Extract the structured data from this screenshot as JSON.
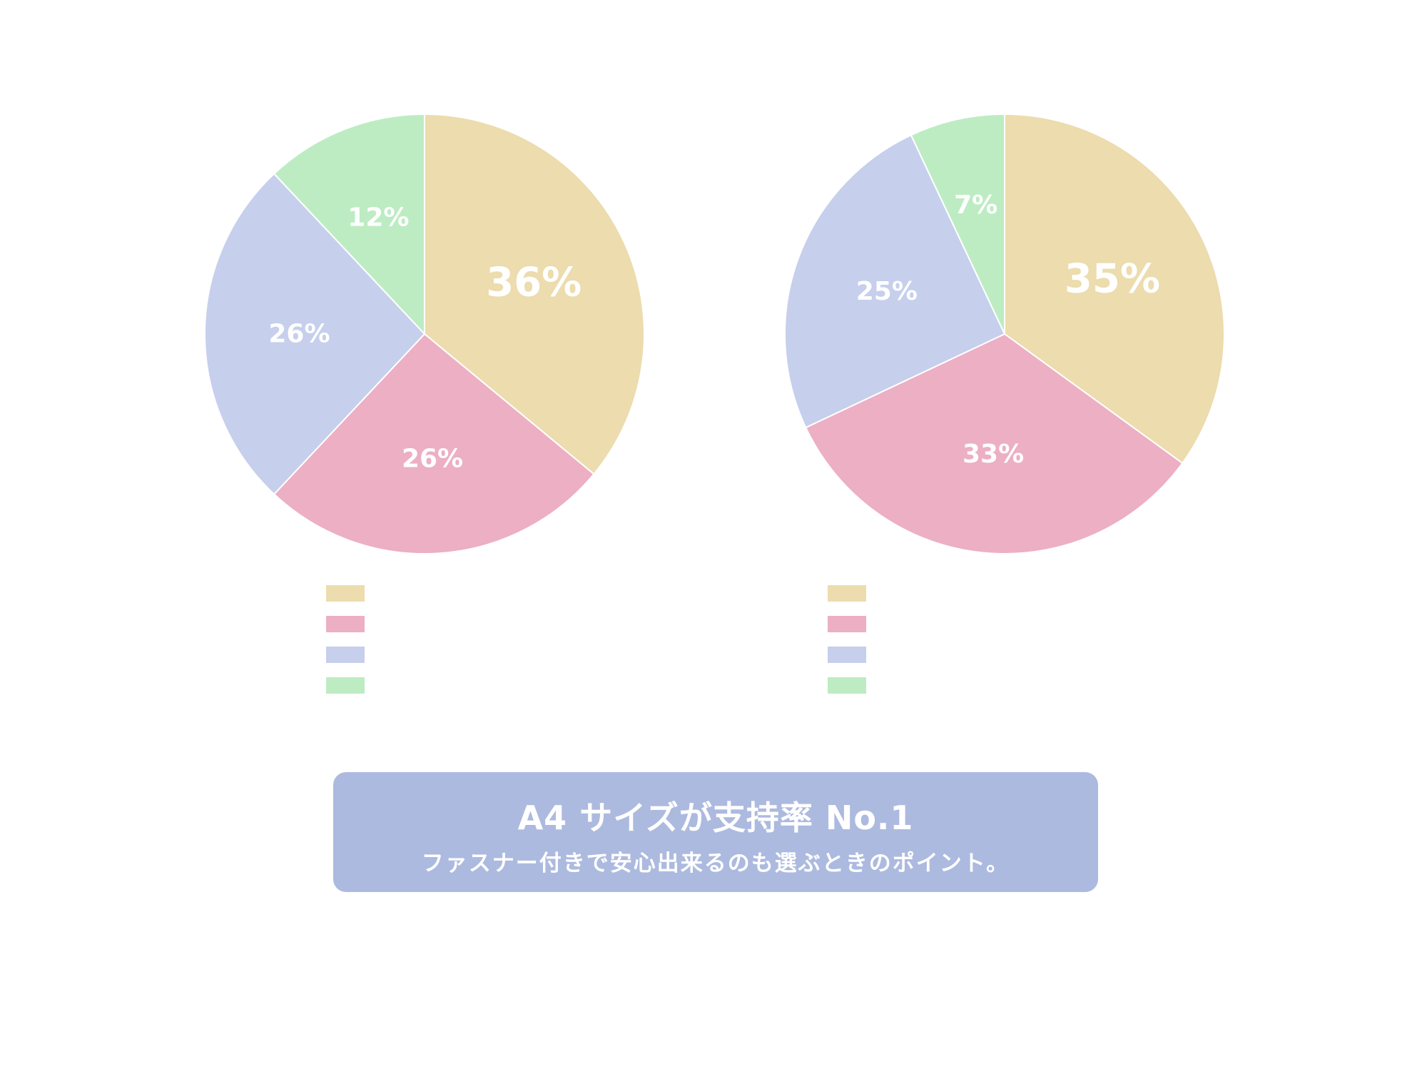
{
  "chart_data": [
    {
      "type": "pie",
      "start_angle": "12 o'clock",
      "direction": "clockwise",
      "categories": [
        "",
        "",
        "",
        ""
      ],
      "values": [
        36,
        26,
        26,
        12
      ],
      "labels": [
        "36%",
        "26%",
        "26%",
        "12%"
      ],
      "colors": [
        "#ecdcae",
        "#ecafc3",
        "#c6cfec",
        "#bdecc3"
      ],
      "legend": {
        "placement": "bottom",
        "entries": [
          "",
          "",
          "",
          ""
        ]
      }
    },
    {
      "type": "pie",
      "start_angle": "12 o'clock",
      "direction": "clockwise",
      "categories": [
        "",
        "",
        "",
        ""
      ],
      "values": [
        35,
        33,
        25,
        7
      ],
      "labels": [
        "35%",
        "33%",
        "25%",
        "7%"
      ],
      "colors": [
        "#ecdcae",
        "#ecafc3",
        "#c6cfec",
        "#bdecc3"
      ],
      "legend": {
        "placement": "bottom",
        "entries": [
          "",
          "",
          "",
          ""
        ]
      }
    }
  ],
  "banner": {
    "title": "A4 サイズが支持率 No.1",
    "subtitle": "ファスナー付きで安心出来るのも選ぶときのポイント。",
    "background": "#adbadf",
    "text_color": "#ffffff"
  }
}
